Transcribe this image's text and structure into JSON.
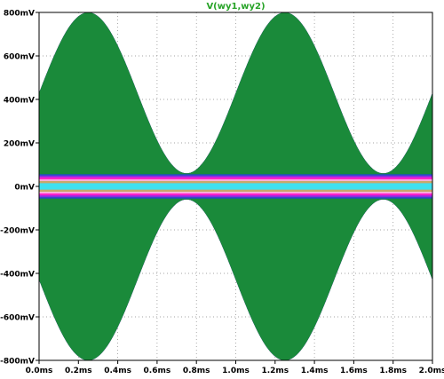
{
  "chart_data": {
    "type": "area",
    "title": "V(wy1,wy2)",
    "title_color": "#27a327",
    "xlabel": "",
    "ylabel": "",
    "x_unit": "ms",
    "y_unit": "mV",
    "xlim": [
      0.0,
      2.0
    ],
    "ylim": [
      -800,
      800
    ],
    "xticks": [
      0.0,
      0.2,
      0.4,
      0.6,
      0.8,
      1.0,
      1.2,
      1.4,
      1.6,
      1.8,
      2.0
    ],
    "xtick_labels": [
      "0.0ms",
      "0.2ms",
      "0.4ms",
      "0.6ms",
      "0.8ms",
      "1.0ms",
      "1.2ms",
      "1.4ms",
      "1.6ms",
      "1.8ms",
      "2.0ms"
    ],
    "yticks": [
      800,
      600,
      400,
      200,
      0,
      -200,
      -400,
      -600,
      -800
    ],
    "ytick_labels": [
      "800mV",
      "600mV",
      "400mV",
      "200mV",
      "0mV",
      "-200mV",
      "-400mV",
      "-600mV",
      "-800mV"
    ],
    "grid": true,
    "grid_style": "dotted",
    "envelope": {
      "description_units": "mV",
      "peak_mV": 800,
      "trough_mV": 60,
      "max_times_ms": [
        0.25,
        1.25
      ],
      "min_times_ms": [
        0.75,
        1.75
      ]
    },
    "series": [
      {
        "color": "#3fe0f0",
        "inner_min_mV": 0
      },
      {
        "color": "#c8a86a",
        "inner_min_mV": 15
      },
      {
        "color": "#ffb3e6",
        "inner_min_mV": 25
      },
      {
        "color": "#ff22cc",
        "inner_min_mV": 32
      },
      {
        "color": "#8a2be2",
        "inner_min_mV": 42
      },
      {
        "color": "#1f4fbf",
        "inner_min_mV": 50
      },
      {
        "color": "#1a8a3a",
        "inner_min_mV": 56
      }
    ],
    "colors": {
      "background": "#ffffff",
      "axis": "#000000",
      "grid": "#888888"
    }
  }
}
